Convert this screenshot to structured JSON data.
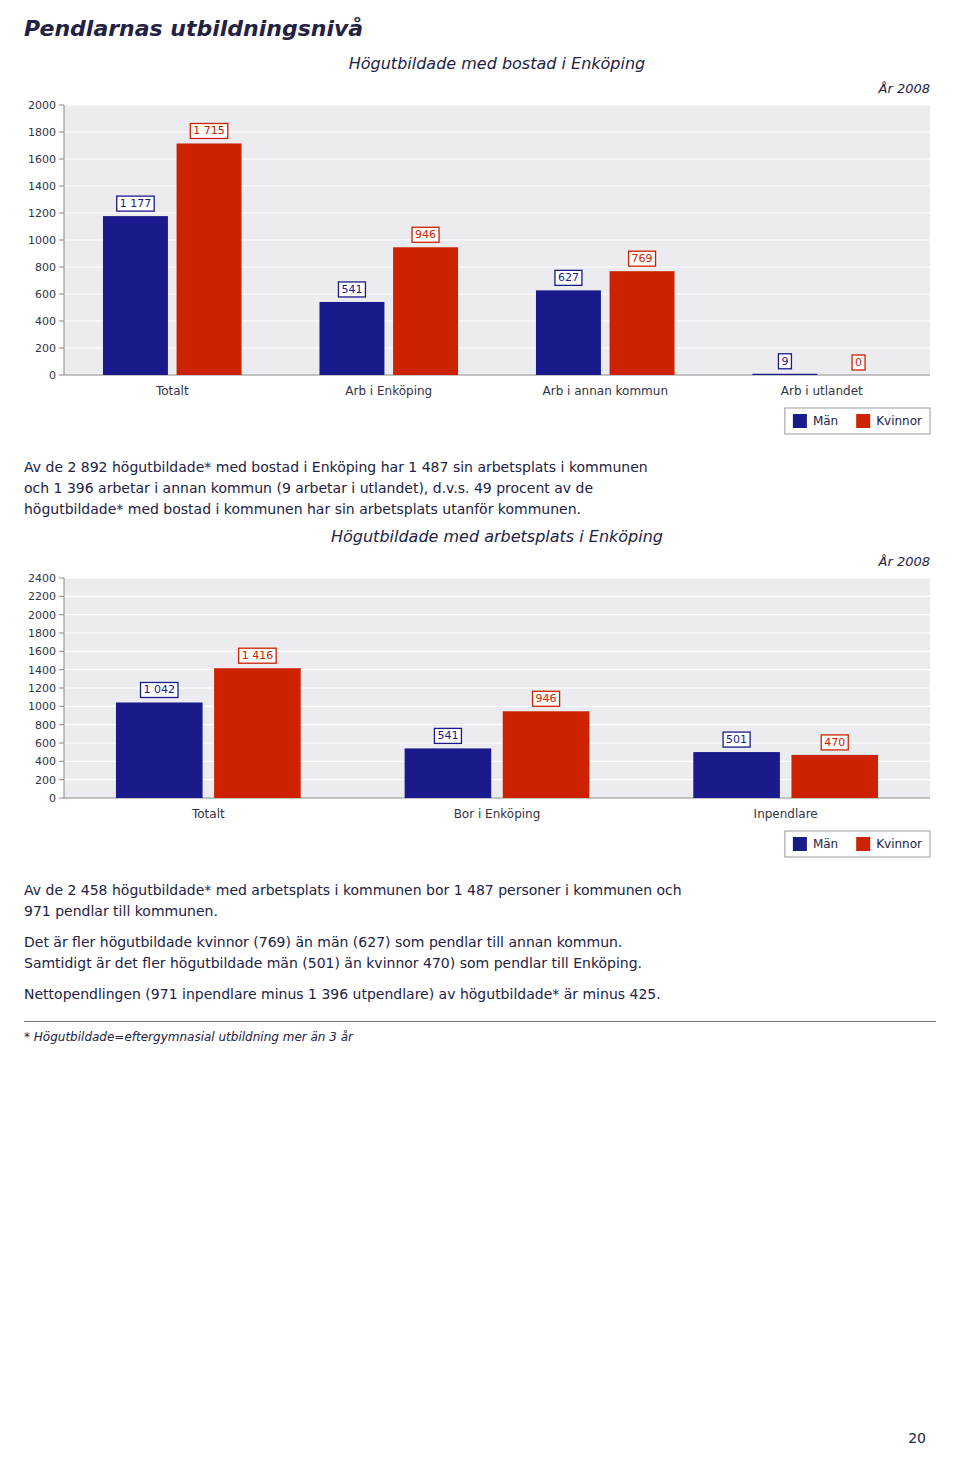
{
  "page_title": "Pendlarnas utbildningsnivå",
  "text_blocks": [
    "Av de 2 892 högutbildade* med bostad i Enköping har 1 487 sin arbetsplats i kommunen\noch 1 396 arbetar i annan kommun (9 arbetar i utlandet), d.v.s. 49 procent av de\nhögutbildade* med bostad i kommunen har sin arbetsplats utanför kommunen.",
    "Av de 2 458 högutbildade* med arbetsplats i kommunen bor 1 487 personer i kommunen och\n971 pendlar till kommunen.",
    "Det är fler högutbildade kvinnor (769) än män (627) som pendlar till annan kommun.\nSamtidigt är det fler högutbildade män (501) än kvinnor 470) som pendlar till Enköping.",
    "Nettopendlingen (971 inpendlare minus 1 396 utpendlare) av högutbildade* är minus 425."
  ],
  "footnote": "* Högutbildade=eftergymnasial utbildning mer än 3 år",
  "page_number": "20",
  "chart_data": [
    {
      "type": "bar",
      "title": "Högutbildade med bostad i Enköping",
      "subtitle": "År 2008",
      "categories": [
        "Totalt",
        "Arb i Enköping",
        "Arb i annan kommun",
        "Arb i utlandet"
      ],
      "series": [
        {
          "name": "Män",
          "color": "#1a1a8c",
          "values": [
            1177,
            541,
            627,
            9
          ],
          "value_labels": [
            "1 177",
            "541",
            "627",
            "9"
          ]
        },
        {
          "name": "Kvinnor",
          "color": "#cc2200",
          "values": [
            1715,
            946,
            769,
            0
          ],
          "value_labels": [
            "1 715",
            "946",
            "769",
            "0"
          ]
        }
      ],
      "ylim": [
        0,
        2000
      ],
      "yticks": [
        0,
        200,
        400,
        600,
        800,
        1000,
        1200,
        1400,
        1600,
        1800,
        2000
      ],
      "grid": true,
      "legend": "lower right",
      "data_labels": true
    },
    {
      "type": "bar",
      "title": "Högutbildade med arbetsplats i Enköping",
      "subtitle": "År 2008",
      "categories": [
        "Totalt",
        "Bor i Enköping",
        "Inpendlare"
      ],
      "series": [
        {
          "name": "Män",
          "color": "#1a1a8c",
          "values": [
            1042,
            541,
            501
          ],
          "value_labels": [
            "1 042",
            "541",
            "501"
          ]
        },
        {
          "name": "Kvinnor",
          "color": "#cc2200",
          "values": [
            1416,
            946,
            470
          ],
          "value_labels": [
            "1 416",
            "946",
            "470"
          ]
        }
      ],
      "ylim": [
        0,
        2400
      ],
      "yticks": [
        0,
        200,
        400,
        600,
        800,
        1000,
        1200,
        1400,
        1600,
        1800,
        2000,
        2200,
        2400
      ],
      "grid": true,
      "legend": "lower right",
      "data_labels": true
    }
  ]
}
